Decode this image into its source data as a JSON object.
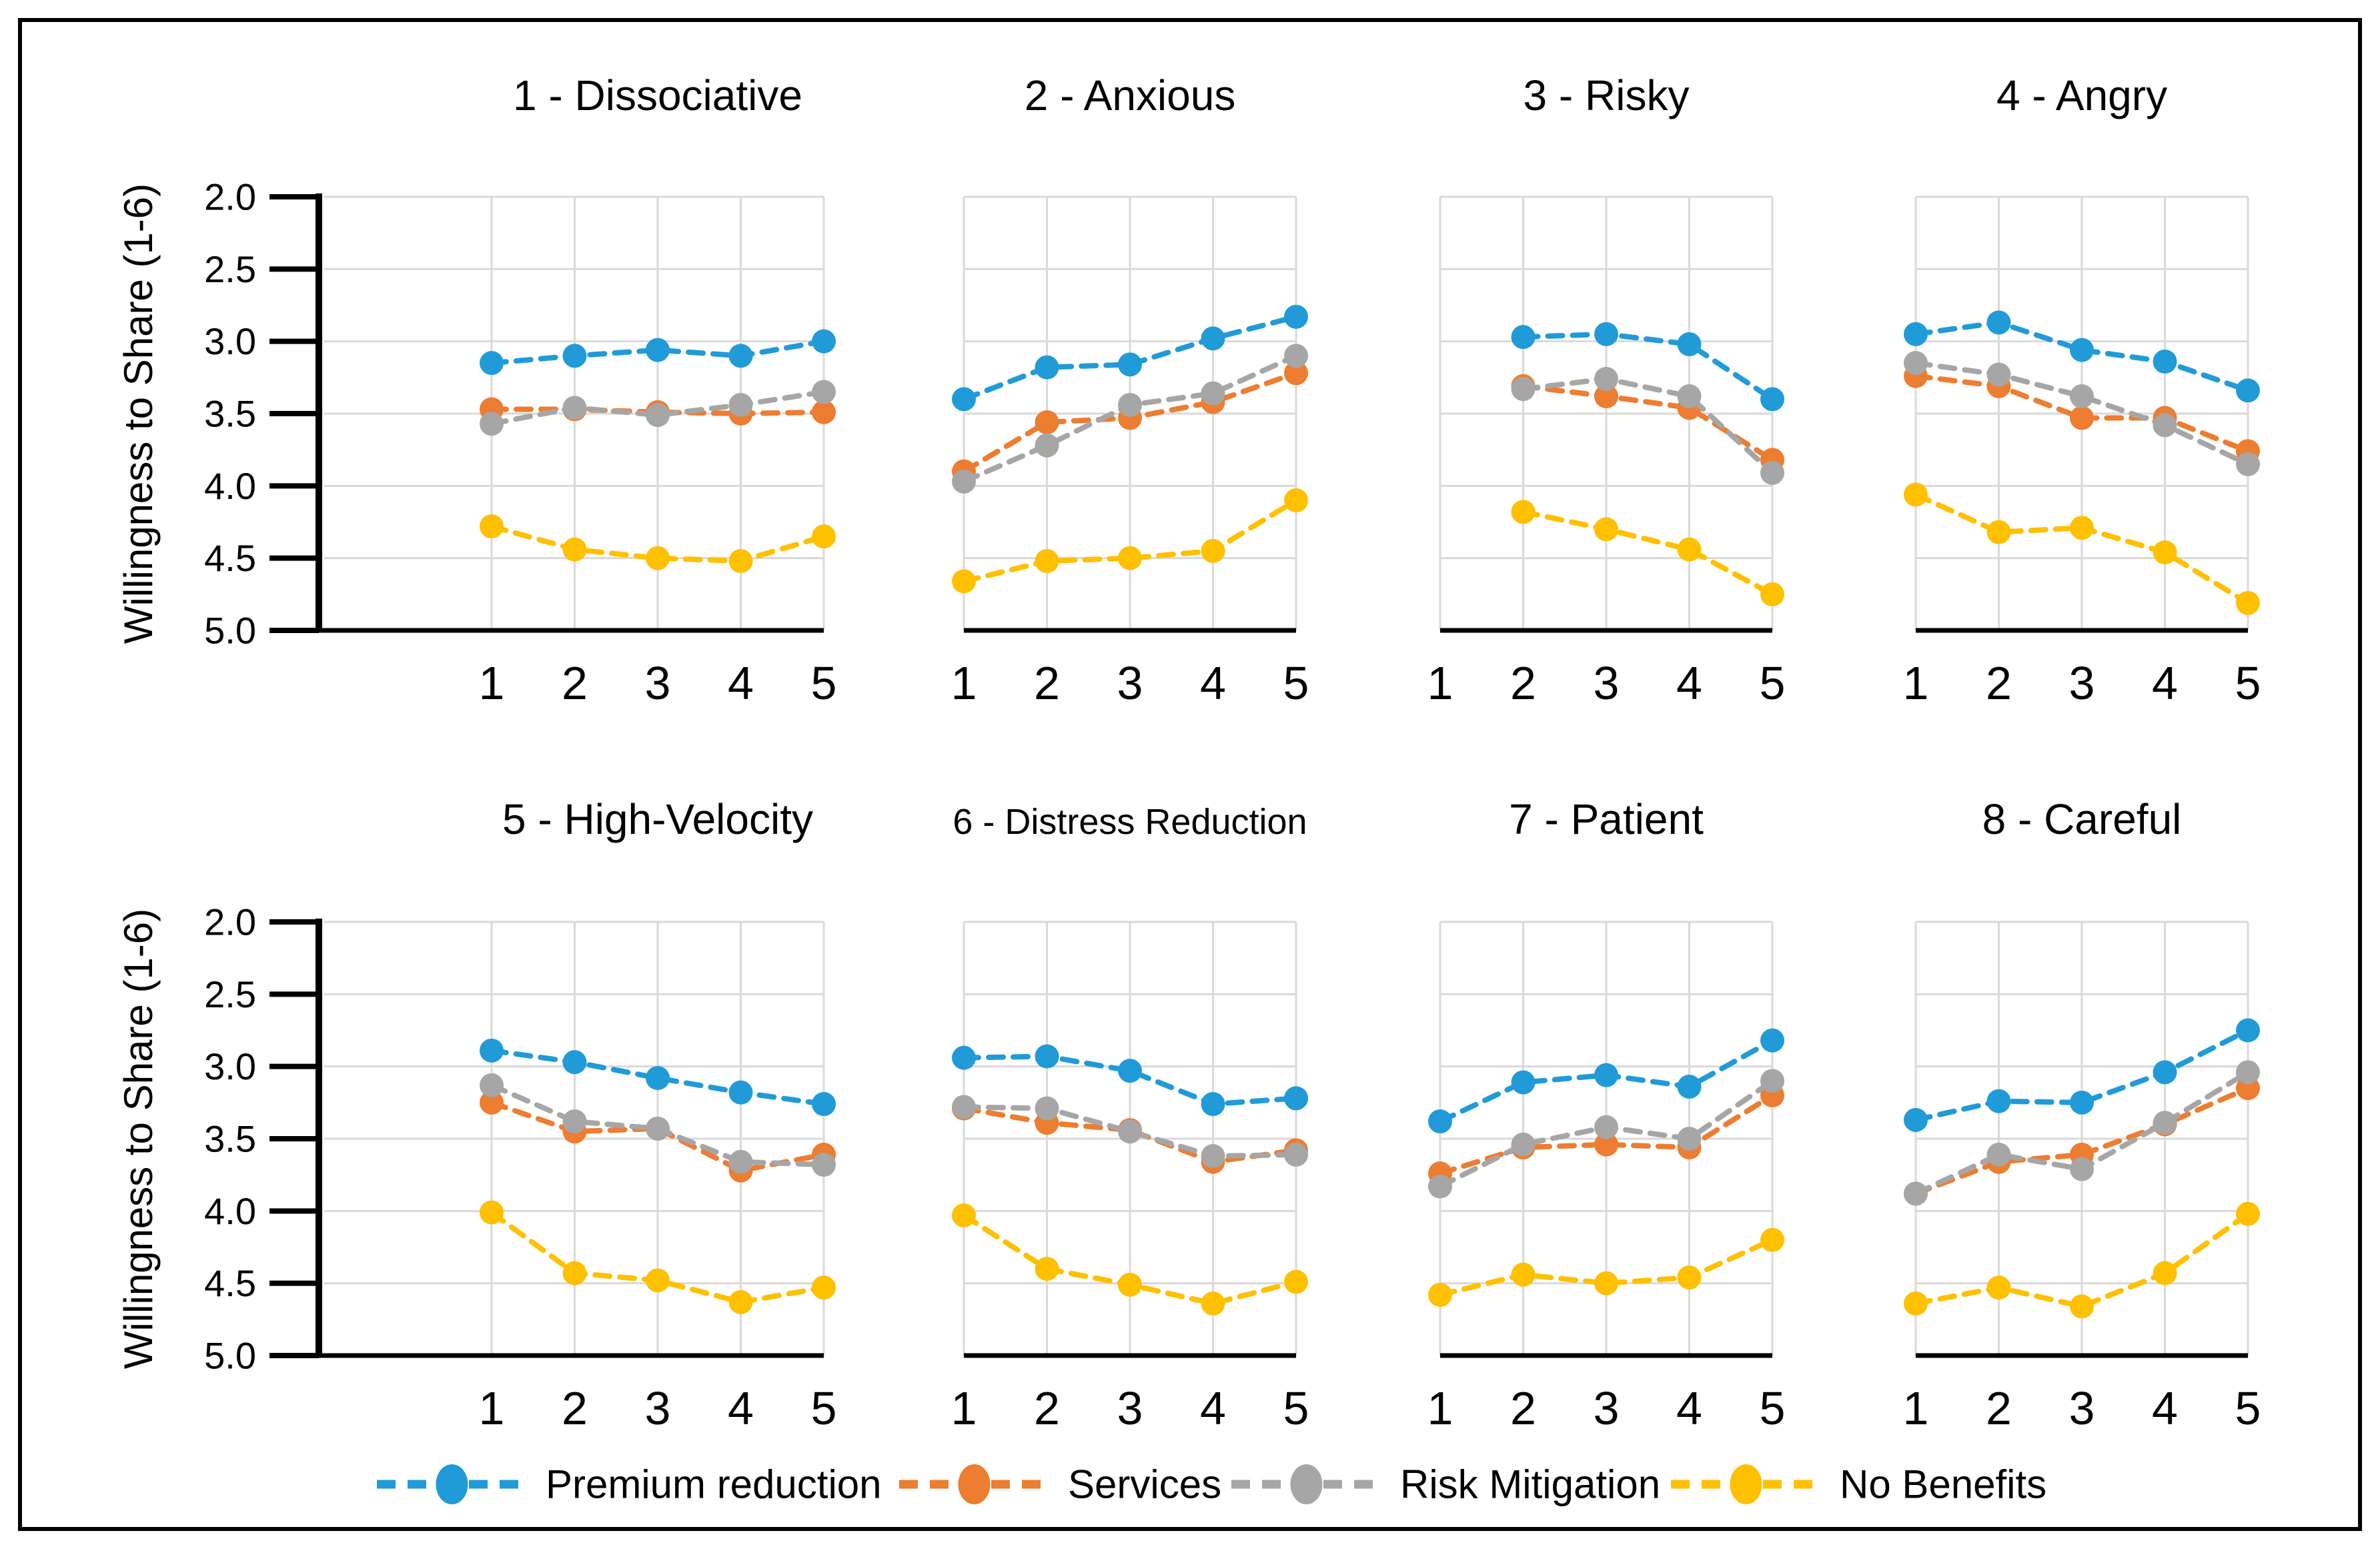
{
  "figure": {
    "background": "#FFFFFF",
    "border_color": "#000000",
    "colors": {
      "premium_reduction": "#219BD7",
      "services": "#ED7D31",
      "risk_mitigation": "#A6A6A6",
      "no_benefits": "#FFC000",
      "gridline": "#D9D9D9",
      "axis": "#000000"
    },
    "y_axis": {
      "title": "Willingness to Share (1-6)",
      "ticks": [
        "2.0",
        "2.5",
        "3.0",
        "3.5",
        "4.0",
        "4.5",
        "5.0"
      ],
      "min": 2.0,
      "max": 5.0,
      "reversed": true
    },
    "x_ticks": [
      "1",
      "2",
      "3",
      "4",
      "5"
    ],
    "legend": [
      {
        "key": "premium_reduction",
        "label": "Premium reduction"
      },
      {
        "key": "services",
        "label": "Services"
      },
      {
        "key": "risk_mitigation",
        "label": "Risk Mitigation"
      },
      {
        "key": "no_benefits",
        "label": "No Benefits"
      }
    ]
  },
  "chart_data": [
    {
      "type": "line",
      "title": "1 - Dissociative",
      "title_small": false,
      "x": [
        "1",
        "2",
        "3",
        "4",
        "5"
      ],
      "ylabel": "Willingness to Share (1-6)",
      "ylim": [
        2.0,
        5.0
      ],
      "y_reversed": true,
      "grid": true,
      "legend_position": "bottom",
      "series": [
        {
          "key": "premium_reduction",
          "name": "Premium reduction",
          "values": [
            3.15,
            3.1,
            3.06,
            3.1,
            3.0
          ]
        },
        {
          "key": "services",
          "name": "Services",
          "values": [
            3.47,
            3.47,
            3.49,
            3.5,
            3.49
          ]
        },
        {
          "key": "risk_mitigation",
          "name": "Risk Mitigation",
          "values": [
            3.57,
            3.46,
            3.51,
            3.44,
            3.35
          ]
        },
        {
          "key": "no_benefits",
          "name": "No Benefits",
          "values": [
            4.28,
            4.44,
            4.5,
            4.52,
            4.35
          ]
        }
      ]
    },
    {
      "type": "line",
      "title": "2 - Anxious",
      "title_small": false,
      "x": [
        "1",
        "2",
        "3",
        "4",
        "5"
      ],
      "ylabel": "Willingness to Share (1-6)",
      "ylim": [
        2.0,
        5.0
      ],
      "y_reversed": true,
      "grid": true,
      "legend_position": "bottom",
      "series": [
        {
          "key": "premium_reduction",
          "name": "Premium reduction",
          "values": [
            3.4,
            3.18,
            3.16,
            2.98,
            2.83
          ]
        },
        {
          "key": "services",
          "name": "Services",
          "values": [
            3.9,
            3.56,
            3.53,
            3.42,
            3.22
          ]
        },
        {
          "key": "risk_mitigation",
          "name": "Risk Mitigation",
          "values": [
            3.97,
            3.72,
            3.44,
            3.36,
            3.1
          ]
        },
        {
          "key": "no_benefits",
          "name": "No Benefits",
          "values": [
            4.66,
            4.52,
            4.5,
            4.45,
            4.1
          ]
        }
      ]
    },
    {
      "type": "line",
      "title": "3 - Risky",
      "title_small": false,
      "x": [
        "1",
        "2",
        "3",
        "4",
        "5"
      ],
      "ylabel": "Willingness to Share (1-6)",
      "ylim": [
        2.0,
        5.0
      ],
      "y_reversed": true,
      "grid": true,
      "legend_position": "bottom",
      "series": [
        {
          "key": "premium_reduction",
          "name": "Premium reduction",
          "values": [
            null,
            2.97,
            2.95,
            3.02,
            3.4
          ]
        },
        {
          "key": "services",
          "name": "Services",
          "values": [
            null,
            3.31,
            3.38,
            3.46,
            3.82
          ]
        },
        {
          "key": "risk_mitigation",
          "name": "Risk Mitigation",
          "values": [
            null,
            3.33,
            3.26,
            3.38,
            3.91
          ]
        },
        {
          "key": "no_benefits",
          "name": "No Benefits",
          "values": [
            null,
            4.18,
            4.3,
            4.44,
            4.75
          ]
        }
      ]
    },
    {
      "type": "line",
      "title": "4 - Angry",
      "title_small": false,
      "x": [
        "1",
        "2",
        "3",
        "4",
        "5"
      ],
      "ylabel": "Willingness to Share (1-6)",
      "ylim": [
        2.0,
        5.0
      ],
      "y_reversed": true,
      "grid": true,
      "legend_position": "bottom",
      "series": [
        {
          "key": "premium_reduction",
          "name": "Premium reduction",
          "values": [
            2.95,
            2.87,
            3.06,
            3.14,
            3.34
          ]
        },
        {
          "key": "services",
          "name": "Services",
          "values": [
            3.24,
            3.31,
            3.53,
            3.53,
            3.76
          ]
        },
        {
          "key": "risk_mitigation",
          "name": "Risk Mitigation",
          "values": [
            3.15,
            3.23,
            3.38,
            3.58,
            3.85
          ]
        },
        {
          "key": "no_benefits",
          "name": "No Benefits",
          "values": [
            4.06,
            4.32,
            4.29,
            4.46,
            4.81
          ]
        }
      ]
    },
    {
      "type": "line",
      "title": "5 - High-Velocity",
      "title_small": false,
      "x": [
        "1",
        "2",
        "3",
        "4",
        "5"
      ],
      "ylabel": "Willingness to Share (1-6)",
      "ylim": [
        2.0,
        5.0
      ],
      "y_reversed": true,
      "grid": true,
      "legend_position": "bottom",
      "series": [
        {
          "key": "premium_reduction",
          "name": "Premium reduction",
          "values": [
            2.89,
            2.97,
            3.08,
            3.18,
            3.26
          ]
        },
        {
          "key": "services",
          "name": "Services",
          "values": [
            3.25,
            3.45,
            3.43,
            3.72,
            3.61
          ]
        },
        {
          "key": "risk_mitigation",
          "name": "Risk Mitigation",
          "values": [
            3.13,
            3.38,
            3.43,
            3.66,
            3.68
          ]
        },
        {
          "key": "no_benefits",
          "name": "No Benefits",
          "values": [
            4.01,
            4.43,
            4.48,
            4.63,
            4.53
          ]
        }
      ]
    },
    {
      "type": "line",
      "title": "6 - Distress Reduction",
      "title_small": true,
      "x": [
        "1",
        "2",
        "3",
        "4",
        "5"
      ],
      "ylabel": "Willingness to Share (1-6)",
      "ylim": [
        2.0,
        5.0
      ],
      "y_reversed": true,
      "grid": true,
      "legend_position": "bottom",
      "series": [
        {
          "key": "premium_reduction",
          "name": "Premium reduction",
          "values": [
            2.94,
            2.93,
            3.03,
            3.26,
            3.22
          ]
        },
        {
          "key": "services",
          "name": "Services",
          "values": [
            3.29,
            3.39,
            3.44,
            3.66,
            3.58
          ]
        },
        {
          "key": "risk_mitigation",
          "name": "Risk Mitigation",
          "values": [
            3.28,
            3.29,
            3.45,
            3.62,
            3.61
          ]
        },
        {
          "key": "no_benefits",
          "name": "No Benefits",
          "values": [
            4.03,
            4.4,
            4.51,
            4.64,
            4.49
          ]
        }
      ]
    },
    {
      "type": "line",
      "title": "7 - Patient",
      "title_small": false,
      "x": [
        "1",
        "2",
        "3",
        "4",
        "5"
      ],
      "ylabel": "Willingness to Share (1-6)",
      "ylim": [
        2.0,
        5.0
      ],
      "y_reversed": true,
      "grid": true,
      "legend_position": "bottom",
      "series": [
        {
          "key": "premium_reduction",
          "name": "Premium reduction",
          "values": [
            3.38,
            3.11,
            3.06,
            3.14,
            2.82
          ]
        },
        {
          "key": "services",
          "name": "Services",
          "values": [
            3.74,
            3.56,
            3.54,
            3.56,
            3.2
          ]
        },
        {
          "key": "risk_mitigation",
          "name": "Risk Mitigation",
          "values": [
            3.83,
            3.54,
            3.42,
            3.5,
            3.1
          ]
        },
        {
          "key": "no_benefits",
          "name": "No Benefits",
          "values": [
            4.58,
            4.44,
            4.5,
            4.46,
            4.2
          ]
        }
      ]
    },
    {
      "type": "line",
      "title": "8 - Careful",
      "title_small": false,
      "x": [
        "1",
        "2",
        "3",
        "4",
        "5"
      ],
      "ylabel": "Willingness to Share (1-6)",
      "ylim": [
        2.0,
        5.0
      ],
      "y_reversed": true,
      "grid": true,
      "legend_position": "bottom",
      "series": [
        {
          "key": "premium_reduction",
          "name": "Premium reduction",
          "values": [
            3.37,
            3.24,
            3.25,
            3.04,
            2.75
          ]
        },
        {
          "key": "services",
          "name": "Services",
          "values": [
            3.88,
            3.66,
            3.61,
            3.4,
            3.15
          ]
        },
        {
          "key": "risk_mitigation",
          "name": "Risk Mitigation",
          "values": [
            3.88,
            3.61,
            3.71,
            3.39,
            3.04
          ]
        },
        {
          "key": "no_benefits",
          "name": "No Benefits",
          "values": [
            4.64,
            4.53,
            4.66,
            4.43,
            4.02
          ]
        }
      ]
    }
  ]
}
